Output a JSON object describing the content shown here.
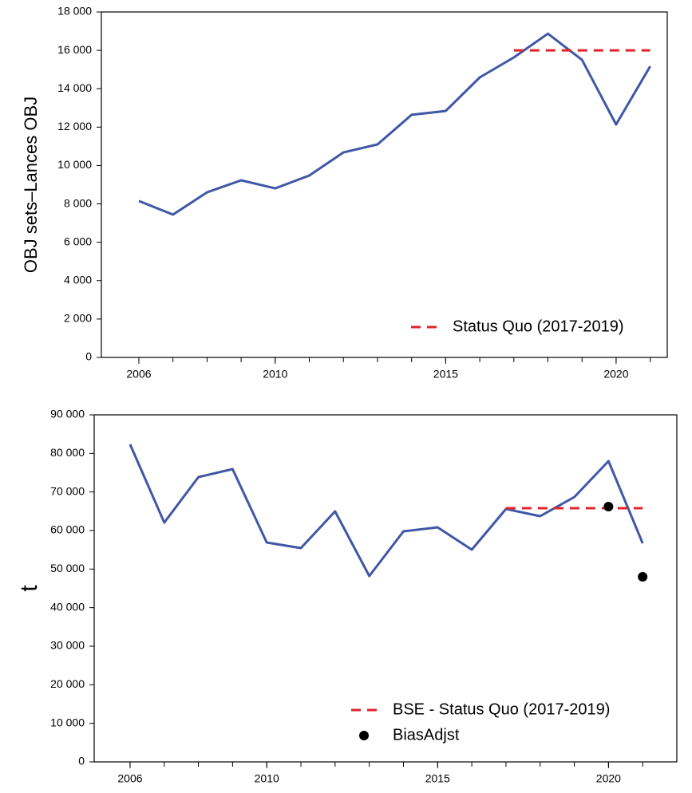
{
  "chart_data": [
    {
      "type": "line",
      "ylabel": "OBJ sets–Lances OBJ",
      "x": [
        2006,
        2007,
        2008,
        2009,
        2010,
        2011,
        2012,
        2013,
        2014,
        2015,
        2016,
        2017,
        2018,
        2019,
        2020,
        2021
      ],
      "series": [
        {
          "color": "#3f57a6",
          "style": "solid",
          "values": [
            8150,
            7440,
            8600,
            9230,
            8810,
            9480,
            10680,
            11100,
            12640,
            12840,
            14590,
            15630,
            16870,
            15500,
            12140,
            15170
          ]
        },
        {
          "name": "Status Quo (2017-2019)",
          "color": "#e0242b",
          "style": "dashed",
          "values": [
            null,
            null,
            null,
            null,
            null,
            null,
            null,
            null,
            null,
            null,
            null,
            16000,
            16000,
            16000,
            16000,
            16000
          ]
        }
      ],
      "xlim": [
        2004.9,
        2021.5
      ],
      "xticks": [
        2006,
        2010,
        2015,
        2020
      ],
      "ylim": [
        0,
        18000
      ],
      "yticks": [
        0,
        {
          "value": 2000,
          "label": "2 000"
        },
        {
          "value": 4000,
          "label": "4 000"
        },
        {
          "value": 6000,
          "label": "6 000"
        },
        {
          "value": 8000,
          "label": "8 000"
        },
        {
          "value": 10000,
          "label": "10 000"
        },
        {
          "value": 12000,
          "label": "12 000"
        },
        {
          "value": 14000,
          "label": "14 000"
        },
        {
          "value": 16000,
          "label": "16 000"
        },
        {
          "value": 18000,
          "label": "18 000"
        }
      ],
      "legend": "lower right"
    },
    {
      "type": "line",
      "ylabel": "t",
      "x": [
        2006,
        2007,
        2008,
        2009,
        2010,
        2011,
        2012,
        2013,
        2014,
        2015,
        2016,
        2017,
        2018,
        2019,
        2020,
        2021
      ],
      "series": [
        {
          "color": "#3f57a6",
          "style": "solid",
          "values": [
            82350,
            62070,
            73870,
            75940,
            56900,
            55450,
            64970,
            48210,
            59800,
            60830,
            55040,
            65590,
            63730,
            68690,
            78000,
            56700
          ]
        },
        {
          "name": "BSE - Status Quo (2017-2019)",
          "color": "#e0242b",
          "style": "dashed",
          "values": [
            null,
            null,
            null,
            null,
            null,
            null,
            null,
            null,
            null,
            null,
            null,
            65800,
            65800,
            65800,
            65800,
            65800
          ]
        },
        {
          "name": "BiasAdjst",
          "color": "#000000",
          "style": "points",
          "values": [
            null,
            null,
            null,
            null,
            null,
            null,
            null,
            null,
            null,
            null,
            null,
            null,
            null,
            null,
            66200,
            48000
          ]
        }
      ],
      "xlim": [
        2004.95,
        2022.0
      ],
      "xticks": [
        2006,
        2010,
        2015,
        2020
      ],
      "ylim": [
        0,
        90000
      ],
      "yticks": [
        0,
        {
          "value": 10000,
          "label": "10 000"
        },
        {
          "value": 20000,
          "label": "20 000"
        },
        {
          "value": 30000,
          "label": "30 000"
        },
        {
          "value": 40000,
          "label": "40 000"
        },
        {
          "value": 50000,
          "label": "50 000"
        },
        {
          "value": 60000,
          "label": "60 000"
        },
        {
          "value": 70000,
          "label": "70 000"
        },
        {
          "value": 80000,
          "label": "80 000"
        },
        {
          "value": 90000,
          "label": "90 000"
        }
      ],
      "legend": "lower right"
    }
  ]
}
